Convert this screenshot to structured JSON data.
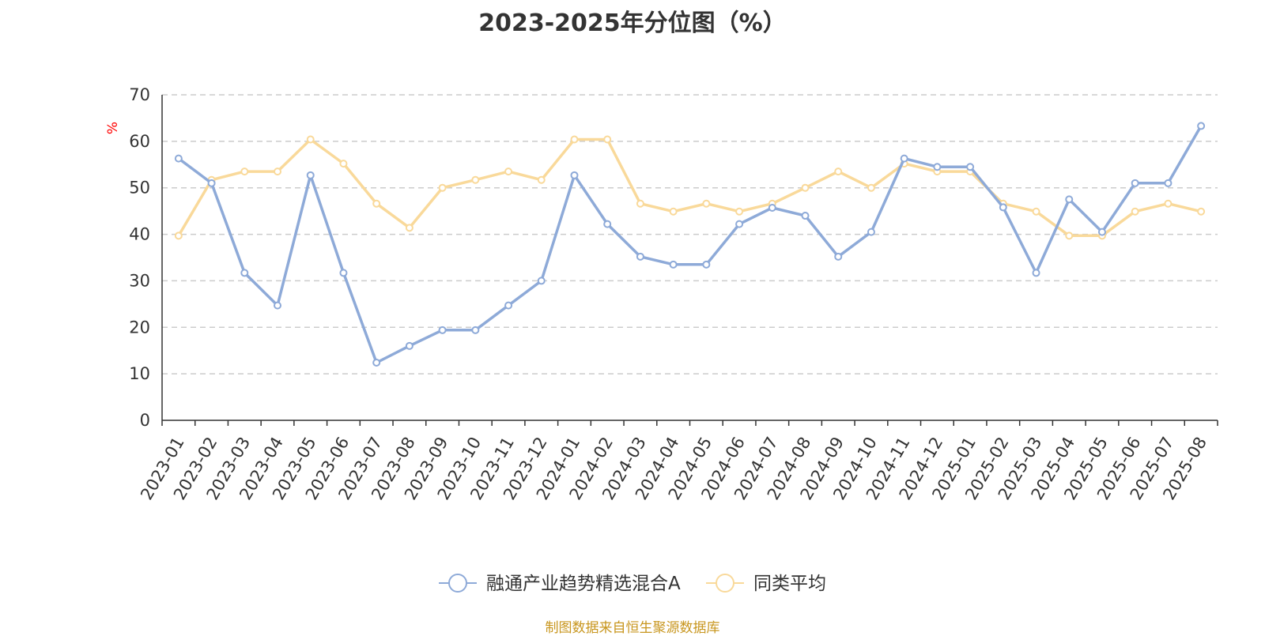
{
  "title": "2023-2025年分位图（%）",
  "source": "制图数据来自恒生聚源数据库",
  "colors": {
    "fund": "#8eaad8",
    "peer": "#f9d99a",
    "unit": "#ff0000",
    "source": "#c8961e",
    "grid": "#cccccc",
    "axis": "#333333"
  },
  "chart_data": {
    "type": "line",
    "ylabel": "%",
    "ylim": [
      0,
      70
    ],
    "yticks": [
      0,
      10,
      20,
      30,
      40,
      50,
      60,
      70
    ],
    "grid": "horizontal-dashed",
    "legend_position": "bottom-center",
    "categories": [
      "2023-01",
      "2023-02",
      "2023-03",
      "2023-04",
      "2023-05",
      "2023-06",
      "2023-07",
      "2023-08",
      "2023-09",
      "2023-10",
      "2023-11",
      "2023-12",
      "2024-01",
      "2024-02",
      "2024-03",
      "2024-04",
      "2024-05",
      "2024-06",
      "2024-07",
      "2024-08",
      "2024-09",
      "2024-10",
      "2024-11",
      "2024-12",
      "2025-01",
      "2025-02",
      "2025-03",
      "2025-04",
      "2025-05",
      "2025-06",
      "2025-07",
      "2025-08"
    ],
    "series": [
      {
        "name": "融通产业趋势精选混合A",
        "values": [
          56.3,
          51.0,
          31.7,
          24.7,
          52.7,
          31.7,
          12.4,
          16.0,
          19.4,
          19.4,
          24.7,
          30.0,
          52.7,
          42.2,
          35.2,
          33.5,
          33.5,
          42.2,
          45.7,
          44.0,
          35.2,
          40.5,
          56.3,
          54.5,
          54.5,
          45.8,
          31.7,
          47.5,
          40.5,
          51.0,
          51.0,
          63.3
        ]
      },
      {
        "name": "同类平均",
        "values": [
          39.7,
          51.7,
          53.5,
          53.5,
          60.4,
          55.2,
          46.6,
          41.4,
          50.0,
          51.7,
          53.5,
          51.7,
          60.4,
          60.4,
          46.6,
          44.9,
          46.6,
          44.9,
          46.6,
          50.0,
          53.5,
          50.0,
          55.2,
          53.5,
          53.5,
          46.6,
          44.9,
          39.7,
          39.7,
          44.9,
          46.6,
          44.9
        ]
      }
    ]
  }
}
